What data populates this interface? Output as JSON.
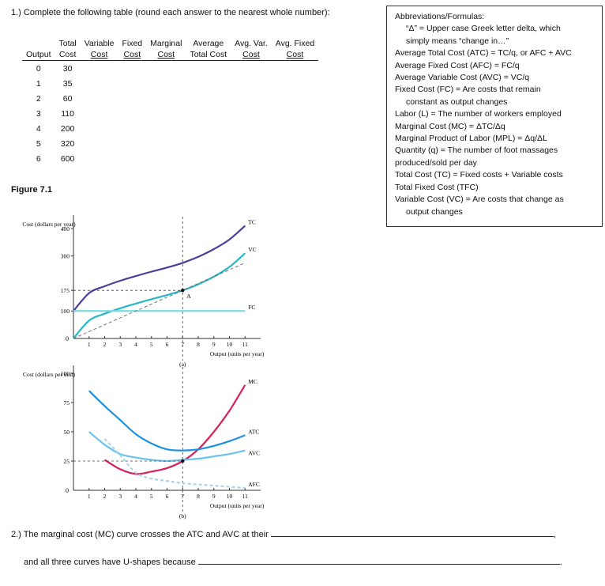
{
  "question1": {
    "prompt": "1.) Complete the following table (round each answer to the nearest whole number):"
  },
  "table": {
    "headers_top": [
      "",
      "Total",
      "Variable",
      "Fixed",
      "Marginal",
      "Average",
      "Avg. Var.",
      "Avg. Fixed"
    ],
    "headers_bottom": [
      "Output",
      "Cost",
      "Cost",
      "Cost",
      "Cost",
      "Total Cost",
      "Cost",
      "Cost"
    ],
    "rows": [
      {
        "output": "0",
        "total_cost": "30"
      },
      {
        "output": "1",
        "total_cost": "35"
      },
      {
        "output": "2",
        "total_cost": "60"
      },
      {
        "output": "3",
        "total_cost": "110"
      },
      {
        "output": "4",
        "total_cost": "200"
      },
      {
        "output": "5",
        "total_cost": "320"
      },
      {
        "output": "6",
        "total_cost": "600"
      }
    ]
  },
  "abbreviations": {
    "title": "Abbreviations/Formulas:",
    "lines": [
      {
        "text": "“Δ” = Upper case Greek letter delta, which",
        "indent": true
      },
      {
        "text": "simply means “change in…”",
        "indent": true
      },
      {
        "text": "Average Total Cost (ATC) = TC/q, or AFC + AVC",
        "indent": false
      },
      {
        "text": "Average Fixed Cost (AFC) = FC/q",
        "indent": false
      },
      {
        "text": "Average Variable Cost (AVC) = VC/q",
        "indent": false
      },
      {
        "text": "Fixed Cost (FC) = Are costs that remain",
        "indent": false
      },
      {
        "text": "constant as output changes",
        "indent": true
      },
      {
        "text": "Labor (L) = The number of workers employed",
        "indent": false
      },
      {
        "text": "Marginal Cost (MC) = ΔTC/Δq",
        "indent": false
      },
      {
        "text": "Marginal Product of Labor (MPL) = Δq/ΔL",
        "indent": false
      },
      {
        "text": "Quantity (q) = The number of foot massages",
        "indent": false
      },
      {
        "text": "produced/sold per day",
        "indent": false
      },
      {
        "text": "Total Cost (TC) = Fixed costs + Variable costs",
        "indent": false
      },
      {
        "text": "Total Fixed Cost (TFC)",
        "indent": false
      },
      {
        "text": "Variable Cost (VC) = Are costs that change as",
        "indent": false
      },
      {
        "text": "output changes",
        "indent": true
      }
    ]
  },
  "figure": {
    "title": "Figure 7.1",
    "panel_a_label": "(a)",
    "panel_b_label": "(b)",
    "colors": {
      "tc": "#4b3f9e",
      "vc": "#27b7c7",
      "fc": "#7fd9e0",
      "mc": "#d6225a",
      "atc": "#1e90e0",
      "avc": "#6cc2ea",
      "afc": "#a9d4ee"
    }
  },
  "chart_data": [
    {
      "type": "line",
      "title": "(a)",
      "ylabel": "Cost (dollars per year)",
      "xlabel": "Output (units per year)",
      "x_ticks": [
        "1",
        "2",
        "3",
        "4",
        "5",
        "6",
        "7",
        "8",
        "9",
        "10",
        "11"
      ],
      "y_ticks": [
        "100",
        "175",
        "300",
        "400"
      ],
      "origin_label": "0",
      "xlim": [
        0,
        12
      ],
      "ylim": [
        0,
        420
      ],
      "series": [
        {
          "name": "TC",
          "x": [
            0,
            1,
            2,
            3,
            4,
            5,
            6,
            7,
            8,
            9,
            10,
            11
          ],
          "values": [
            100,
            165,
            190,
            210,
            227,
            243,
            258,
            275,
            297,
            325,
            360,
            410
          ]
        },
        {
          "name": "VC",
          "x": [
            0,
            1,
            2,
            3,
            4,
            5,
            6,
            7,
            8,
            9,
            10,
            11
          ],
          "values": [
            0,
            65,
            90,
            110,
            127,
            143,
            158,
            175,
            197,
            225,
            260,
            310
          ]
        },
        {
          "name": "FC",
          "x": [
            0,
            11
          ],
          "values": [
            100,
            100
          ]
        },
        {
          "name": "ray",
          "x": [
            0,
            11
          ],
          "values": [
            0,
            275
          ]
        }
      ],
      "annotations": [
        {
          "label": "A",
          "x": 7,
          "y": 175
        }
      ]
    },
    {
      "type": "line",
      "title": "(b)",
      "ylabel": "Cost (dollars per unit)",
      "xlabel": "Output (units per year)",
      "x_ticks": [
        "1",
        "2",
        "3",
        "4",
        "5",
        "6",
        "7",
        "8",
        "9",
        "10",
        "11"
      ],
      "y_ticks": [
        "25",
        "50",
        "75",
        "100"
      ],
      "origin_label": "0",
      "xlim": [
        0,
        12
      ],
      "ylim": [
        0,
        100
      ],
      "series": [
        {
          "name": "MC",
          "x": [
            2,
            3,
            4,
            5,
            6,
            7,
            8,
            9,
            10,
            11
          ],
          "values": [
            26,
            18,
            14,
            16,
            19,
            25,
            35,
            50,
            68,
            90
          ]
        },
        {
          "name": "ATC",
          "x": [
            1,
            2,
            3,
            4,
            5,
            6,
            7,
            8,
            9,
            10,
            11
          ],
          "values": [
            85,
            72,
            60,
            48,
            40,
            35,
            34,
            35,
            38,
            42,
            47
          ]
        },
        {
          "name": "AVC",
          "x": [
            1,
            2,
            3,
            4,
            5,
            6,
            7,
            8,
            9,
            10,
            11
          ],
          "values": [
            50,
            39,
            31,
            28,
            26,
            25,
            26,
            27,
            29,
            31,
            34
          ]
        },
        {
          "name": "AFC",
          "x": [
            2,
            3,
            4,
            5,
            6,
            7,
            8,
            9,
            10,
            11
          ],
          "values": [
            44,
            30,
            15,
            10,
            8,
            6,
            5,
            4,
            3,
            2
          ]
        }
      ]
    }
  ],
  "question2": {
    "prompt": "2.) The marginal cost (MC) curve crosses the ATC and AVC at their",
    "suffix": ",",
    "continuation": "and all three curves have U-shapes because",
    "end": "."
  }
}
